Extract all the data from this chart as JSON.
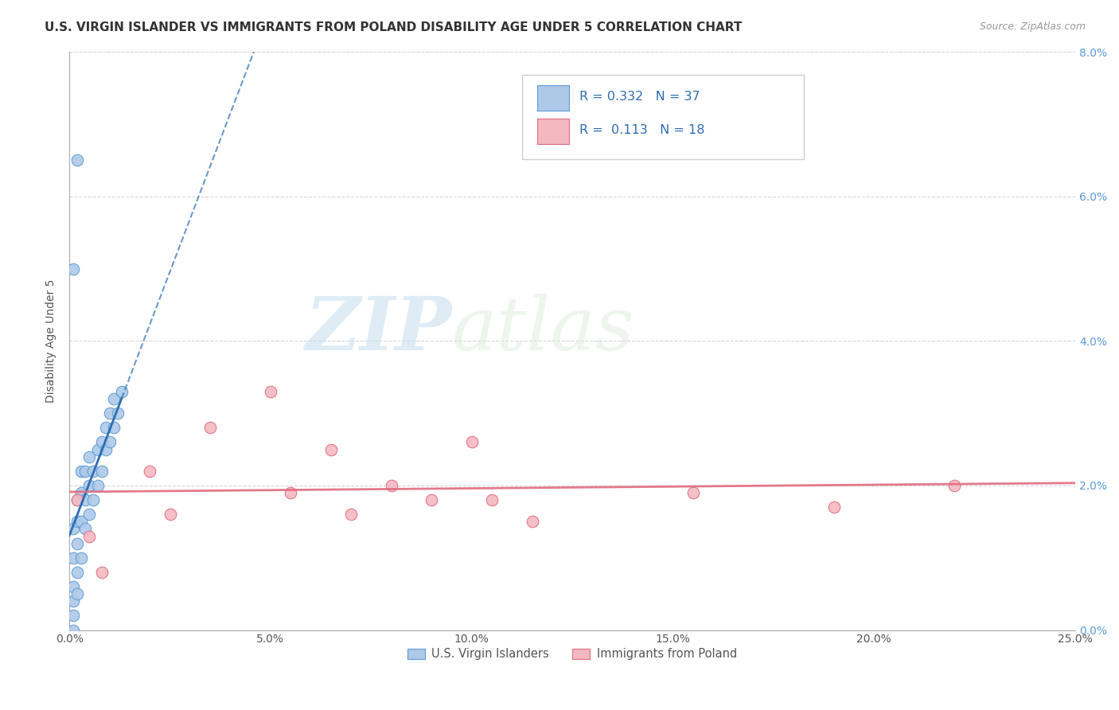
{
  "title": "U.S. VIRGIN ISLANDER VS IMMIGRANTS FROM POLAND DISABILITY AGE UNDER 5 CORRELATION CHART",
  "source": "Source: ZipAtlas.com",
  "ylabel": "Disability Age Under 5",
  "xlim": [
    0.0,
    0.25
  ],
  "ylim": [
    0.0,
    0.08
  ],
  "xticks": [
    0.0,
    0.05,
    0.1,
    0.15,
    0.2,
    0.25
  ],
  "xtick_labels": [
    "0.0%",
    "5.0%",
    "10.0%",
    "15.0%",
    "20.0%",
    "25.0%"
  ],
  "yticks": [
    0.0,
    0.02,
    0.04,
    0.06,
    0.08
  ],
  "ytick_labels": [
    "0.0%",
    "2.0%",
    "4.0%",
    "6.0%",
    "8.0%"
  ],
  "blue_color": "#aec9e8",
  "blue_edge_color": "#5b9bd5",
  "blue_line_color": "#2e6db4",
  "pink_color": "#f4b8c1",
  "pink_edge_color": "#e06c7f",
  "pink_line_color": "#e06c7f",
  "R_blue": 0.332,
  "N_blue": 37,
  "R_pink": 0.113,
  "N_pink": 18,
  "legend_label_blue": "U.S. Virgin Islanders",
  "legend_label_pink": "Immigrants from Poland",
  "watermark_zip": "ZIP",
  "watermark_atlas": "atlas",
  "blue_scatter_x": [
    0.001,
    0.001,
    0.001,
    0.001,
    0.001,
    0.001,
    0.002,
    0.002,
    0.002,
    0.002,
    0.002,
    0.003,
    0.003,
    0.003,
    0.003,
    0.004,
    0.004,
    0.004,
    0.005,
    0.005,
    0.005,
    0.006,
    0.006,
    0.007,
    0.007,
    0.008,
    0.008,
    0.009,
    0.009,
    0.01,
    0.01,
    0.011,
    0.011,
    0.012,
    0.013,
    0.001,
    0.002
  ],
  "blue_scatter_y": [
    0.0,
    0.002,
    0.004,
    0.006,
    0.01,
    0.014,
    0.005,
    0.008,
    0.012,
    0.015,
    0.018,
    0.01,
    0.015,
    0.019,
    0.022,
    0.014,
    0.018,
    0.022,
    0.016,
    0.02,
    0.024,
    0.018,
    0.022,
    0.02,
    0.025,
    0.022,
    0.026,
    0.025,
    0.028,
    0.026,
    0.03,
    0.028,
    0.032,
    0.03,
    0.033,
    0.05,
    0.065
  ],
  "pink_scatter_x": [
    0.002,
    0.005,
    0.008,
    0.02,
    0.025,
    0.035,
    0.05,
    0.055,
    0.065,
    0.07,
    0.08,
    0.09,
    0.1,
    0.105,
    0.115,
    0.155,
    0.19,
    0.22
  ],
  "pink_scatter_y": [
    0.018,
    0.013,
    0.008,
    0.022,
    0.016,
    0.028,
    0.033,
    0.019,
    0.025,
    0.016,
    0.02,
    0.018,
    0.026,
    0.018,
    0.015,
    0.019,
    0.017,
    0.02
  ],
  "title_fontsize": 11,
  "axis_fontsize": 10,
  "tick_fontsize": 10
}
